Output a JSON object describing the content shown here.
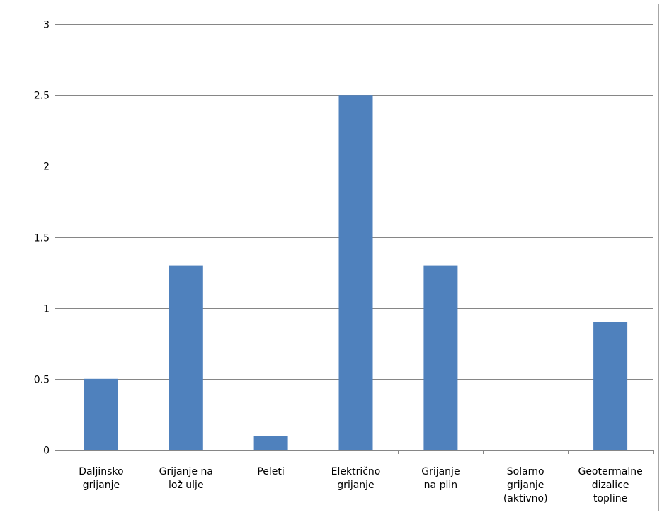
{
  "chart_data": {
    "type": "bar",
    "title": "",
    "xlabel": "",
    "ylabel": "",
    "categories": [
      [
        "Daljinsko",
        "grijanje"
      ],
      [
        "Grijanje na",
        "lož ulje"
      ],
      [
        "Peleti"
      ],
      [
        "Električno",
        "grijanje"
      ],
      [
        "Grijanje",
        "na plin"
      ],
      [
        "Solarno",
        "grijanje",
        "(aktivno)"
      ],
      [
        "Geotermalne",
        "dizalice",
        "topline"
      ]
    ],
    "values": [
      0.5,
      1.3,
      0.1,
      2.5,
      1.3,
      0,
      0.9
    ],
    "ylim": [
      0,
      3
    ],
    "yticks": [
      "0",
      "0.5",
      "1",
      "1.5",
      "2",
      "2.5",
      "3"
    ],
    "ytick_values": [
      0,
      0.5,
      1,
      1.5,
      2,
      2.5,
      3
    ],
    "grid": true,
    "legend": "none",
    "bar_color": "#4f81bd",
    "grid_color": "#868686"
  }
}
